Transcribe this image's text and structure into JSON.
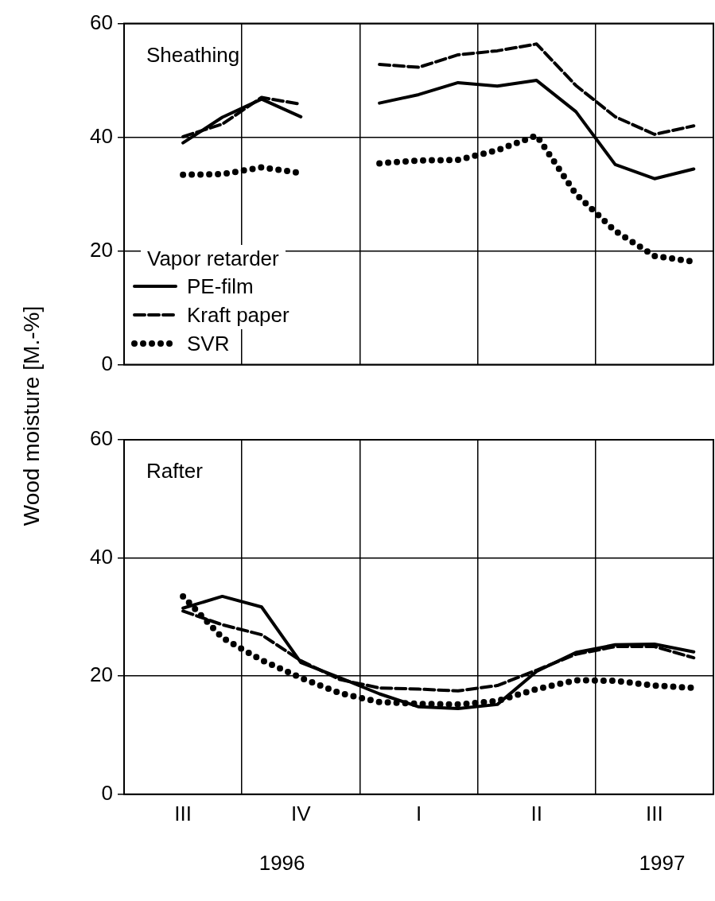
{
  "chart_data": [
    {
      "type": "line",
      "title": "Sheathing",
      "ylabel": "Wood moisture [M.-%]",
      "legend_title": "Vapor retarder",
      "legend": "bottom left",
      "grid": true,
      "tick_labels": "y",
      "categories": [
        null,
        null,
        null,
        null,
        null,
        null,
        null,
        null,
        null,
        null,
        null,
        null,
        null,
        null,
        null
      ],
      "ylim": [
        0,
        60
      ],
      "yticks": [
        0,
        20,
        40,
        60
      ],
      "series": [
        {
          "name": "PE-film",
          "color": "#000000",
          "line_style": "solid",
          "values": [
            null,
            39.0,
            43.5,
            46.7,
            43.6,
            null,
            null,
            null,
            null,
            null,
            null,
            null,
            null,
            null,
            null
          ]
        },
        {
          "name": "Kraft paper",
          "color": "#000000",
          "line_style": "dashed",
          "values": [
            null,
            40.1,
            42.3,
            47.0,
            45.8,
            null,
            null,
            null,
            null,
            null,
            null,
            null,
            null,
            null,
            null
          ]
        },
        {
          "name": "SVR",
          "color": "#000000",
          "line_style": "dotted",
          "values": [
            null,
            33.4,
            33.5,
            34.7,
            33.7,
            null,
            null,
            null,
            null,
            null,
            null,
            null,
            null,
            null,
            null
          ]
        },
        {
          "color": "#000000",
          "line_style": "solid",
          "values": [
            null,
            null,
            null,
            null,
            null,
            null,
            46.0,
            47.5,
            49.6,
            49.0,
            50.0,
            44.5,
            35.2,
            32.7,
            34.4
          ]
        },
        {
          "color": "#000000",
          "line_style": "dashed",
          "values": [
            null,
            null,
            null,
            null,
            null,
            null,
            52.8,
            52.3,
            54.5,
            55.2,
            56.4,
            49.1,
            43.6,
            40.5,
            42.0
          ]
        },
        {
          "color": "#000000",
          "line_style": "dotted",
          "values": [
            null,
            null,
            null,
            null,
            null,
            null,
            35.4,
            35.9,
            36.0,
            37.7,
            40.3,
            30.0,
            23.5,
            19.1,
            18.1
          ]
        }
      ]
    },
    {
      "type": "line",
      "title": "Rafter",
      "grid": true,
      "categories": [
        null,
        "III",
        null,
        null,
        "IV",
        null,
        null,
        "I",
        null,
        null,
        "II",
        null,
        null,
        "III",
        null
      ],
      "ylim": [
        0,
        60
      ],
      "yticks": [
        0,
        20,
        40,
        60
      ],
      "annotations": [
        "1996",
        "1997"
      ],
      "series": [
        {
          "color": "#000000",
          "line_style": "solid",
          "values": [
            null,
            31.5,
            33.5,
            31.7,
            22.3,
            19.7,
            17.0,
            14.8,
            14.5,
            15.2,
            20.8,
            24.0,
            25.3,
            25.4,
            24.1
          ]
        },
        {
          "color": "#000000",
          "line_style": "dashed",
          "values": [
            null,
            31.0,
            28.7,
            27.0,
            22.6,
            19.4,
            18.0,
            17.8,
            17.5,
            18.4,
            21.0,
            23.7,
            25.0,
            25.0,
            23.1
          ]
        },
        {
          "color": "#000000",
          "line_style": "dotted",
          "values": [
            null,
            33.5,
            26.5,
            22.7,
            19.7,
            17.1,
            15.6,
            15.3,
            15.2,
            15.8,
            17.8,
            19.3,
            19.2,
            18.4,
            18.0
          ]
        }
      ]
    }
  ]
}
